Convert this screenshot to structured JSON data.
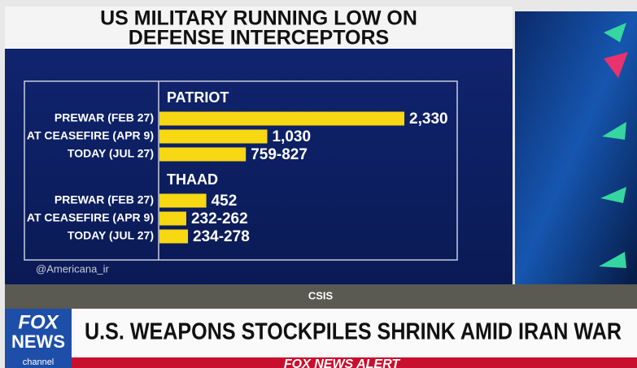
{
  "chart_data": {
    "type": "bar",
    "orientation": "horizontal",
    "title": [
      "US MILITARY RUNNING LOW ON",
      "DEFENSE INTERCEPTORS"
    ],
    "color": "#f7d812",
    "groups": [
      {
        "name": "PATRIOT",
        "categories": [
          "PREWAR (FEB 27)",
          "AT CEASEFIRE (APR 9)",
          "TODAY (JUL 27)"
        ],
        "values": [
          2330,
          1030,
          [
            759,
            827
          ]
        ],
        "value_labels": [
          "2,330",
          "1,030",
          "759-827"
        ]
      },
      {
        "name": "THAAD",
        "categories": [
          "PREWAR (FEB 27)",
          "AT CEASEFIRE (APR 9)",
          "TODAY (JUL 27)"
        ],
        "values": [
          452,
          [
            232,
            262
          ],
          [
            234,
            278
          ]
        ],
        "value_labels": [
          "452",
          "232-262",
          "234-278"
        ]
      }
    ]
  },
  "watermark": "@Americana_ir",
  "source": "CSIS",
  "logo": [
    "FOX",
    "NEWS",
    "channel"
  ],
  "headline": "U.S. WEAPONS STOCKPILES SHRINK AMID IRAN WAR",
  "ticker": "FOX NEWS ALERT"
}
